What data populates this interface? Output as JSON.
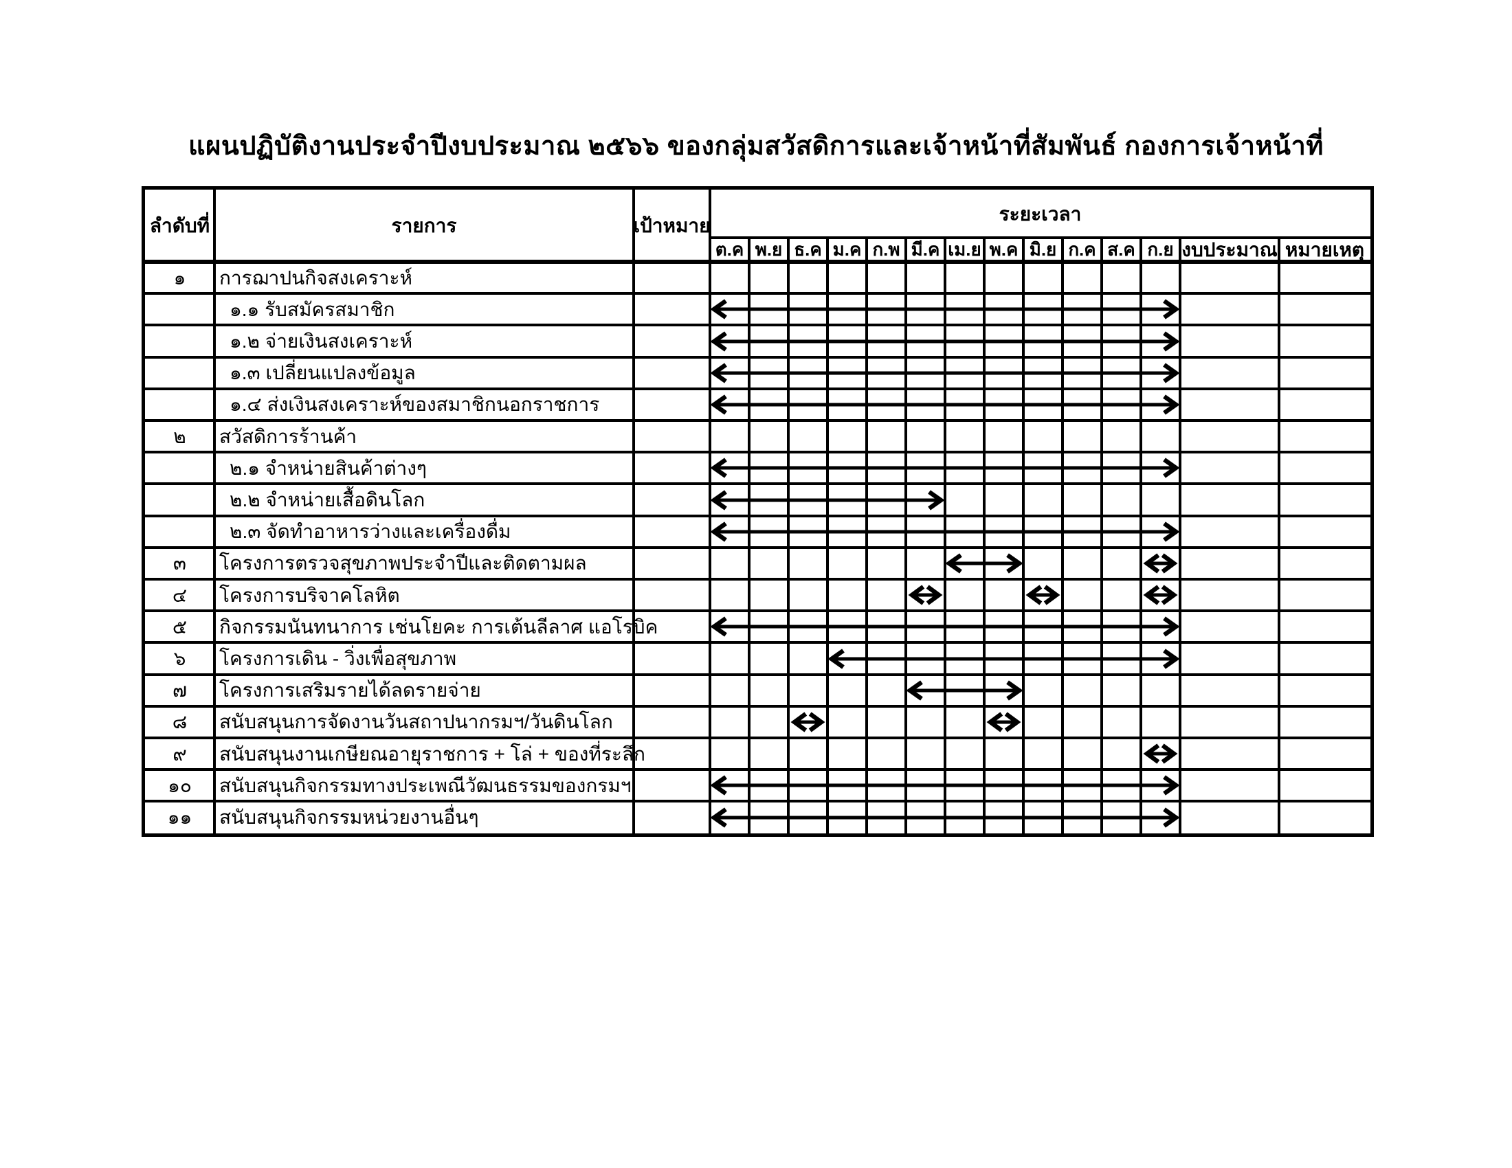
{
  "title": "แผนปฏิบัติงานประจำปีงบประมาณ ๒๕๖๖ ของกลุ่มสวัสดิการและเจ้าหน้าที่สัมพันธ์ กองการเจ้าหน้าที่",
  "colors": {
    "ink": "#000000",
    "paper": "#ffffff"
  },
  "table": {
    "headers": {
      "no": "ลำดับที่",
      "item": "รายการ",
      "target": "เป้าหมาย",
      "period": "ระยะเวลา",
      "budget": "งบประมาณ",
      "note": "หมายเหตุ"
    },
    "months": [
      "ต.ค",
      "พ.ย",
      "ธ.ค",
      "ม.ค",
      "ก.พ",
      "มี.ค",
      "เม.ย",
      "พ.ค",
      "มิ.ย",
      "ก.ค",
      "ส.ค",
      "ก.ย"
    ],
    "rows": [
      {
        "no": "๑",
        "item": "การฌาปนกิจสงเคราะห์",
        "sub": false,
        "target": "",
        "arrows": [],
        "budget": "",
        "note": ""
      },
      {
        "no": "",
        "item": "๑.๑ รับสมัครสมาชิก",
        "sub": true,
        "target": "",
        "arrows": [
          [
            1,
            12
          ]
        ],
        "budget": "",
        "note": ""
      },
      {
        "no": "",
        "item": "๑.๒ จ่ายเงินสงเคราะห์",
        "sub": true,
        "target": "",
        "arrows": [
          [
            1,
            12
          ]
        ],
        "budget": "",
        "note": ""
      },
      {
        "no": "",
        "item": "๑.๓ เปลี่ยนแปลงข้อมูล",
        "sub": true,
        "target": "",
        "arrows": [
          [
            1,
            12
          ]
        ],
        "budget": "",
        "note": ""
      },
      {
        "no": "",
        "item": "๑.๔ ส่งเงินสงเคราะห์ของสมาชิกนอกราชการ",
        "sub": true,
        "target": "",
        "arrows": [
          [
            1,
            12
          ]
        ],
        "budget": "",
        "note": ""
      },
      {
        "no": "๒",
        "item": "สวัสดิการร้านค้า",
        "sub": false,
        "target": "",
        "arrows": [],
        "budget": "",
        "note": ""
      },
      {
        "no": "",
        "item": "๒.๑ จำหน่ายสินค้าต่างๆ",
        "sub": true,
        "target": "",
        "arrows": [
          [
            1,
            12
          ]
        ],
        "budget": "",
        "note": ""
      },
      {
        "no": "",
        "item": "๒.๒ จำหน่ายเสื้อดินโลก",
        "sub": true,
        "target": "",
        "arrows": [
          [
            1,
            6
          ]
        ],
        "budget": "",
        "note": ""
      },
      {
        "no": "",
        "item": "๒.๓ จัดทำอาหารว่างและเครื่องดื่ม",
        "sub": true,
        "target": "",
        "arrows": [
          [
            1,
            12
          ]
        ],
        "budget": "",
        "note": ""
      },
      {
        "no": "๓",
        "item": "โครงการตรวจสุขภาพประจำปีและติดตามผล",
        "sub": false,
        "target": "",
        "arrows": [
          [
            7,
            8
          ],
          [
            12,
            12
          ]
        ],
        "budget": "",
        "note": ""
      },
      {
        "no": "๔",
        "item": "โครงการบริจาคโลหิต",
        "sub": false,
        "target": "",
        "arrows": [
          [
            6,
            6
          ],
          [
            9,
            9
          ],
          [
            12,
            12
          ]
        ],
        "budget": "",
        "note": ""
      },
      {
        "no": "๕",
        "item": "กิจกรรมนันทนาการ เช่นโยคะ การเต้นลีลาศ แอโรบิค",
        "sub": false,
        "target": "",
        "arrows": [
          [
            1,
            12
          ]
        ],
        "budget": "",
        "note": ""
      },
      {
        "no": "๖",
        "item": "โครงการเดิน - วิ่งเพื่อสุขภาพ",
        "sub": false,
        "target": "",
        "arrows": [
          [
            4,
            12
          ]
        ],
        "budget": "",
        "note": ""
      },
      {
        "no": "๗",
        "item": "โครงการเสริมรายได้ลดรายจ่าย",
        "sub": false,
        "target": "",
        "arrows": [
          [
            6,
            8
          ]
        ],
        "budget": "",
        "note": ""
      },
      {
        "no": "๘",
        "item": "สนับสนุนการจัดงานวันสถาปนากรมฯ/วันดินโลก",
        "sub": false,
        "target": "",
        "arrows": [
          [
            3,
            3
          ],
          [
            8,
            8
          ]
        ],
        "budget": "",
        "note": ""
      },
      {
        "no": "๙",
        "item": "สนับสนุนงานเกษียณอายุราชการ + โล่ + ของที่ระลึก",
        "sub": false,
        "target": "",
        "arrows": [
          [
            12,
            12
          ]
        ],
        "budget": "",
        "note": ""
      },
      {
        "no": "๑๐",
        "item": "สนับสนุนกิจกรรมทางประเพณีวัฒนธรรมของกรมฯ",
        "sub": false,
        "target": "",
        "arrows": [
          [
            1,
            12
          ]
        ],
        "budget": "",
        "note": ""
      },
      {
        "no": "๑๑",
        "item": "สนับสนุนกิจกรรมหน่วยงานอื่นๆ",
        "sub": false,
        "target": "",
        "arrows": [
          [
            1,
            12
          ]
        ],
        "budget": "",
        "note": ""
      }
    ]
  }
}
